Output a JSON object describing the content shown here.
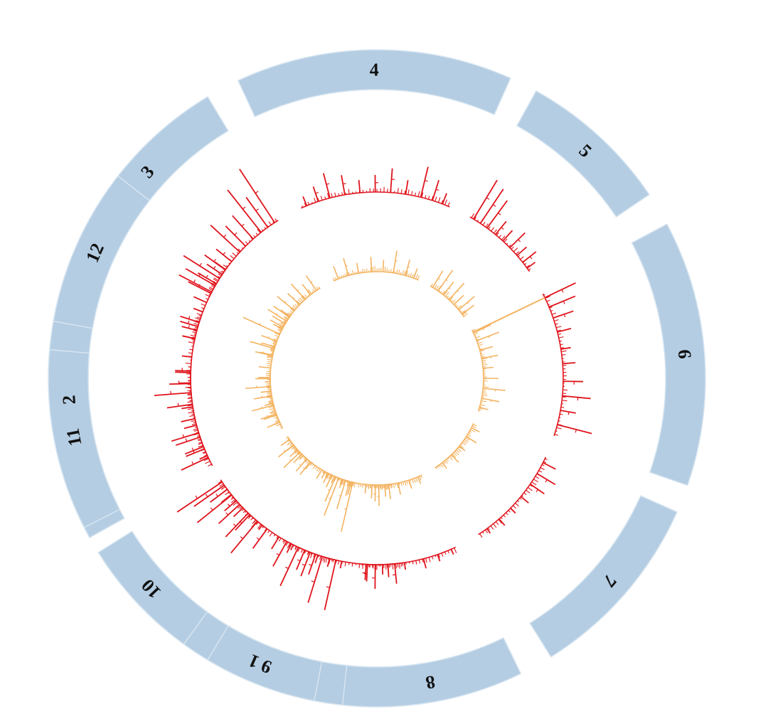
{
  "chart_data": {
    "type": "circos",
    "colors": {
      "ideogram": "#b4cde3",
      "ideogram_edge": "#d7e5f0",
      "outer_track": "#e0141c",
      "inner_track": "#f4b462"
    },
    "chromosomes": [
      {
        "label": "1",
        "start_deg": 81,
        "end_deg": 146
      },
      {
        "label": "2",
        "start_deg": 151,
        "end_deg": 201
      },
      {
        "label": "3",
        "start_deg": 205,
        "end_deg": 239
      },
      {
        "label": "4",
        "start_deg": 245,
        "end_deg": 294
      },
      {
        "label": "5",
        "start_deg": 299,
        "end_deg": 326
      },
      {
        "label": "6",
        "start_deg": 332,
        "end_deg": 379
      },
      {
        "label": "7",
        "start_deg": 384,
        "end_deg": 418
      },
      {
        "label": "8",
        "start_deg": 424,
        "end_deg": 456
      },
      {
        "label": "9",
        "start_deg": 461,
        "end_deg": 481
      },
      {
        "label": "10",
        "start_deg": 486,
        "end_deg": 508
      },
      {
        "label": "11",
        "start_deg": 513,
        "end_deg": 545
      },
      {
        "label": "12",
        "start_deg": 550,
        "end_deg": 578
      }
    ],
    "outer_track": [
      {
        "chrom": "1",
        "peaks": [
          [
            0.04,
            28
          ],
          [
            0.1,
            14
          ],
          [
            0.18,
            22
          ],
          [
            0.3,
            10
          ],
          [
            0.42,
            12
          ],
          [
            0.55,
            8
          ],
          [
            0.63,
            20
          ],
          [
            0.7,
            34
          ],
          [
            0.76,
            58
          ],
          [
            0.82,
            46
          ],
          [
            0.88,
            40
          ],
          [
            0.94,
            62
          ]
        ]
      },
      {
        "chrom": "2",
        "peaks": [
          [
            0.06,
            42
          ],
          [
            0.12,
            28
          ],
          [
            0.2,
            36
          ],
          [
            0.28,
            18
          ],
          [
            0.4,
            16
          ],
          [
            0.55,
            30
          ],
          [
            0.62,
            22
          ],
          [
            0.72,
            14
          ],
          [
            0.84,
            18
          ],
          [
            0.92,
            26
          ]
        ]
      },
      {
        "chrom": "3",
        "peaks": [
          [
            0.05,
            52
          ],
          [
            0.12,
            48
          ],
          [
            0.2,
            60
          ],
          [
            0.3,
            36
          ],
          [
            0.4,
            28
          ],
          [
            0.52,
            56
          ],
          [
            0.6,
            40
          ],
          [
            0.7,
            44
          ],
          [
            0.8,
            76
          ],
          [
            0.88,
            52
          ],
          [
            0.96,
            90
          ]
        ]
      },
      {
        "chrom": "4",
        "peaks": [
          [
            0.04,
            14
          ],
          [
            0.12,
            22
          ],
          [
            0.2,
            36
          ],
          [
            0.3,
            28
          ],
          [
            0.4,
            18
          ],
          [
            0.5,
            24
          ],
          [
            0.6,
            34
          ],
          [
            0.7,
            20
          ],
          [
            0.8,
            44
          ],
          [
            0.88,
            30
          ],
          [
            0.95,
            16
          ]
        ]
      },
      {
        "chrom": "5",
        "peaks": [
          [
            0.05,
            64
          ],
          [
            0.15,
            58
          ],
          [
            0.25,
            48
          ],
          [
            0.38,
            24
          ],
          [
            0.5,
            20
          ],
          [
            0.62,
            30
          ],
          [
            0.75,
            18
          ],
          [
            0.86,
            24
          ],
          [
            0.95,
            14
          ]
        ]
      },
      {
        "chrom": "6",
        "peaks": [
          [
            0.03,
            48
          ],
          [
            0.1,
            40
          ],
          [
            0.18,
            30
          ],
          [
            0.28,
            20
          ],
          [
            0.4,
            14
          ],
          [
            0.5,
            18
          ],
          [
            0.62,
            28
          ],
          [
            0.72,
            40
          ],
          [
            0.82,
            22
          ],
          [
            0.92,
            50
          ]
        ]
      },
      {
        "chrom": "7",
        "peaks": [
          [
            0.06,
            20
          ],
          [
            0.18,
            30
          ],
          [
            0.3,
            24
          ],
          [
            0.45,
            14
          ],
          [
            0.6,
            10
          ],
          [
            0.75,
            12
          ],
          [
            0.9,
            8
          ]
        ]
      },
      {
        "chrom": "8",
        "peaks": [
          [
            0.05,
            8
          ],
          [
            0.2,
            10
          ],
          [
            0.35,
            14
          ],
          [
            0.55,
            10
          ],
          [
            0.72,
            18
          ],
          [
            0.85,
            34
          ],
          [
            0.93,
            24
          ]
        ]
      },
      {
        "chrom": "9",
        "peaks": [
          [
            0.04,
            72
          ],
          [
            0.15,
            12
          ],
          [
            0.28,
            68
          ],
          [
            0.4,
            30
          ],
          [
            0.5,
            36
          ],
          [
            0.6,
            30
          ],
          [
            0.72,
            60
          ],
          [
            0.85,
            14
          ],
          [
            0.94,
            40
          ]
        ]
      },
      {
        "chrom": "10",
        "peaks": [
          [
            0.05,
            8
          ],
          [
            0.15,
            12
          ],
          [
            0.3,
            30
          ],
          [
            0.45,
            18
          ],
          [
            0.6,
            22
          ],
          [
            0.72,
            18
          ],
          [
            0.82,
            30
          ],
          [
            0.9,
            52
          ],
          [
            0.96,
            76
          ]
        ]
      },
      {
        "chrom": "11",
        "peaks": [
          [
            0.05,
            12
          ],
          [
            0.15,
            28
          ],
          [
            0.3,
            40
          ],
          [
            0.45,
            20
          ],
          [
            0.6,
            36
          ],
          [
            0.72,
            52
          ],
          [
            0.82,
            16
          ],
          [
            0.94,
            22
          ]
        ]
      },
      {
        "chrom": "12",
        "peaks": [
          [
            0.05,
            18
          ],
          [
            0.15,
            22
          ],
          [
            0.25,
            28
          ],
          [
            0.38,
            14
          ],
          [
            0.5,
            20
          ],
          [
            0.62,
            36
          ],
          [
            0.75,
            30
          ],
          [
            0.88,
            26
          ],
          [
            0.95,
            18
          ]
        ]
      }
    ],
    "inner_track": [
      {
        "chrom": "1",
        "peaks": [
          [
            0.06,
            16
          ],
          [
            0.14,
            22
          ],
          [
            0.22,
            12
          ],
          [
            0.35,
            18
          ],
          [
            0.5,
            10
          ],
          [
            0.62,
            14
          ],
          [
            0.74,
            22
          ],
          [
            0.86,
            30
          ],
          [
            0.94,
            12
          ]
        ]
      },
      {
        "chrom": "2",
        "peaks": [
          [
            0.08,
            18
          ],
          [
            0.18,
            22
          ],
          [
            0.3,
            12
          ],
          [
            0.44,
            14
          ],
          [
            0.58,
            20
          ],
          [
            0.7,
            16
          ],
          [
            0.84,
            24
          ],
          [
            0.94,
            18
          ]
        ]
      },
      {
        "chrom": "3",
        "peaks": [
          [
            0.05,
            14
          ],
          [
            0.15,
            20
          ],
          [
            0.28,
            26
          ],
          [
            0.42,
            30
          ],
          [
            0.55,
            22
          ],
          [
            0.68,
            28
          ],
          [
            0.8,
            18
          ],
          [
            0.92,
            24
          ]
        ]
      },
      {
        "chrom": "4",
        "peaks": [
          [
            0.06,
            18
          ],
          [
            0.18,
            24
          ],
          [
            0.3,
            14
          ],
          [
            0.45,
            20
          ],
          [
            0.58,
            16
          ],
          [
            0.7,
            30
          ],
          [
            0.84,
            22
          ],
          [
            0.94,
            14
          ]
        ]
      },
      {
        "chrom": "5",
        "peaks": [
          [
            0.06,
            26
          ],
          [
            0.2,
            34
          ],
          [
            0.34,
            22
          ],
          [
            0.5,
            30
          ],
          [
            0.65,
            18
          ],
          [
            0.8,
            28
          ],
          [
            0.92,
            20
          ]
        ]
      },
      {
        "chrom": "6",
        "peaks": [
          [
            0.04,
            26
          ],
          [
            0.14,
            32
          ],
          [
            0.26,
            18
          ],
          [
            0.36,
            22
          ],
          [
            0.48,
            14
          ],
          [
            0.6,
            20
          ],
          [
            0.72,
            30
          ],
          [
            0.84,
            24
          ],
          [
            0.95,
            12
          ]
        ]
      },
      {
        "chrom": "7",
        "peaks": [
          [
            0.08,
            12
          ],
          [
            0.25,
            16
          ],
          [
            0.45,
            10
          ],
          [
            0.65,
            14
          ],
          [
            0.85,
            10
          ]
        ]
      },
      {
        "chrom": "8",
        "peaks": [
          [
            0.08,
            10
          ],
          [
            0.25,
            12
          ],
          [
            0.45,
            16
          ],
          [
            0.62,
            20
          ],
          [
            0.8,
            28
          ],
          [
            0.92,
            18
          ]
        ]
      },
      {
        "chrom": "9",
        "peaks": [
          [
            0.06,
            68
          ],
          [
            0.16,
            20
          ],
          [
            0.28,
            40
          ],
          [
            0.38,
            12
          ],
          [
            0.5,
            54
          ],
          [
            0.6,
            36
          ],
          [
            0.72,
            18
          ],
          [
            0.84,
            14
          ],
          [
            0.94,
            10
          ]
        ]
      },
      {
        "chrom": "10",
        "peaks": [
          [
            0.06,
            12
          ],
          [
            0.2,
            22
          ],
          [
            0.38,
            16
          ],
          [
            0.55,
            14
          ],
          [
            0.72,
            26
          ],
          [
            0.9,
            14
          ]
        ]
      },
      {
        "chrom": "11",
        "peaks": [
          [
            0.06,
            10
          ],
          [
            0.2,
            18
          ],
          [
            0.38,
            30
          ],
          [
            0.55,
            24
          ],
          [
            0.72,
            34
          ],
          [
            0.88,
            16
          ]
        ]
      },
      {
        "chrom": "12",
        "peaks": [
          [
            0.06,
            18
          ],
          [
            0.2,
            34
          ],
          [
            0.36,
            22
          ],
          [
            0.52,
            54
          ],
          [
            0.68,
            20
          ],
          [
            0.82,
            30
          ],
          [
            0.94,
            14
          ]
        ]
      }
    ],
    "outlier_link": {
      "from_track": "inner",
      "to_track": "outer",
      "chrom": "6",
      "pos": 0.03
    }
  }
}
